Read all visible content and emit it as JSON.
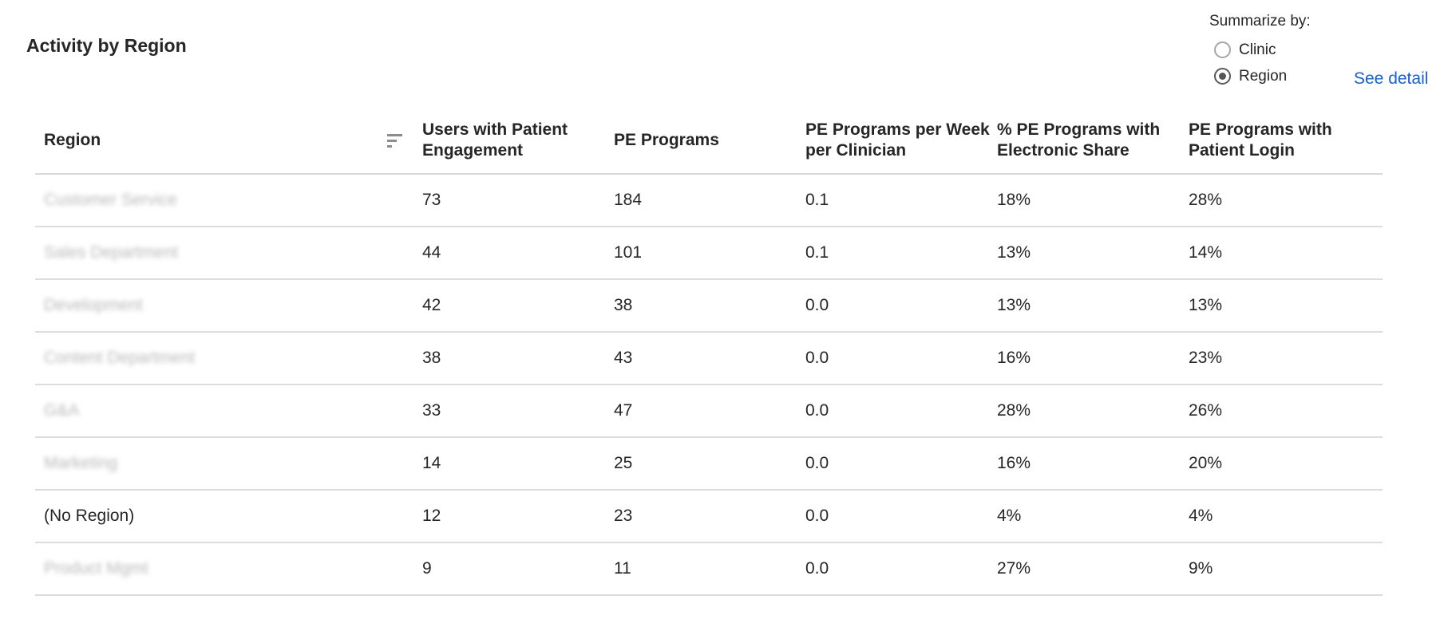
{
  "title": "Activity by Region",
  "summarize": {
    "label": "Summarize by:",
    "options": [
      {
        "label": "Clinic",
        "checked": false
      },
      {
        "label": "Region",
        "checked": true
      }
    ]
  },
  "see_detail": "See detail",
  "icons": {
    "sort": "sort-icon"
  },
  "table": {
    "headers": {
      "region": "Region",
      "users": "Users with Patient Engagement",
      "pe_programs": "PE Programs",
      "per_week": "PE Programs per Week per Clinician",
      "electronic_share": "% PE Programs with Electronic Share",
      "patient_login": "PE Programs with Patient Login"
    },
    "rows": [
      {
        "region": "Customer Service",
        "users": "73",
        "pe_programs": "184",
        "per_week": "0.1",
        "electronic_share": "18%",
        "patient_login": "28%"
      },
      {
        "region": "Sales Department",
        "users": "44",
        "pe_programs": "101",
        "per_week": "0.1",
        "electronic_share": "13%",
        "patient_login": "14%"
      },
      {
        "region": "Development",
        "users": "42",
        "pe_programs": "38",
        "per_week": "0.0",
        "electronic_share": "13%",
        "patient_login": "13%"
      },
      {
        "region": "Content Department",
        "users": "38",
        "pe_programs": "43",
        "per_week": "0.0",
        "electronic_share": "16%",
        "patient_login": "23%"
      },
      {
        "region": "G&A",
        "users": "33",
        "pe_programs": "47",
        "per_week": "0.0",
        "electronic_share": "28%",
        "patient_login": "26%"
      },
      {
        "region": "Marketing",
        "users": "14",
        "pe_programs": "25",
        "per_week": "0.0",
        "electronic_share": "16%",
        "patient_login": "20%"
      },
      {
        "region": "(No Region)",
        "users": "12",
        "pe_programs": "23",
        "per_week": "0.0",
        "electronic_share": "4%",
        "patient_login": "4%"
      },
      {
        "region": "Product Mgmt",
        "users": "9",
        "pe_programs": "11",
        "per_week": "0.0",
        "electronic_share": "27%",
        "patient_login": "9%"
      }
    ]
  }
}
